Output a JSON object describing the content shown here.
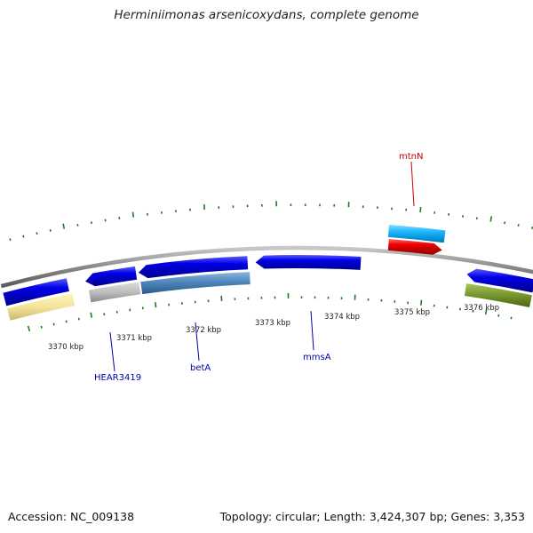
{
  "title": "Herminiimonas arsenicoxydans, complete genome",
  "footer": {
    "accession": "Accession: NC_009138",
    "summary": "Topology: circular; Length: 3,424,307 bp; Genes: 3,353"
  },
  "colors": {
    "backbone": "#8a8a8a",
    "ticks": "#1e7a1e",
    "forward_gene": "#0000e0",
    "label_forward": "#0000aa",
    "label_reverse": "#cc0000"
  },
  "ticks": [
    {
      "label": "3370 kbp"
    },
    {
      "label": "3371 kbp"
    },
    {
      "label": "3372 kbp"
    },
    {
      "label": "3373 kbp"
    },
    {
      "label": "3374 kbp"
    },
    {
      "label": "3375 kbp"
    },
    {
      "label": "3376 kbp"
    }
  ],
  "gene_labels": [
    {
      "name": "mtnN",
      "color": "#cc0000"
    },
    {
      "name": "HEAR3419",
      "color": "#0000aa"
    },
    {
      "name": "betA",
      "color": "#0000aa"
    },
    {
      "name": "mmsA",
      "color": "#0000aa"
    }
  ]
}
